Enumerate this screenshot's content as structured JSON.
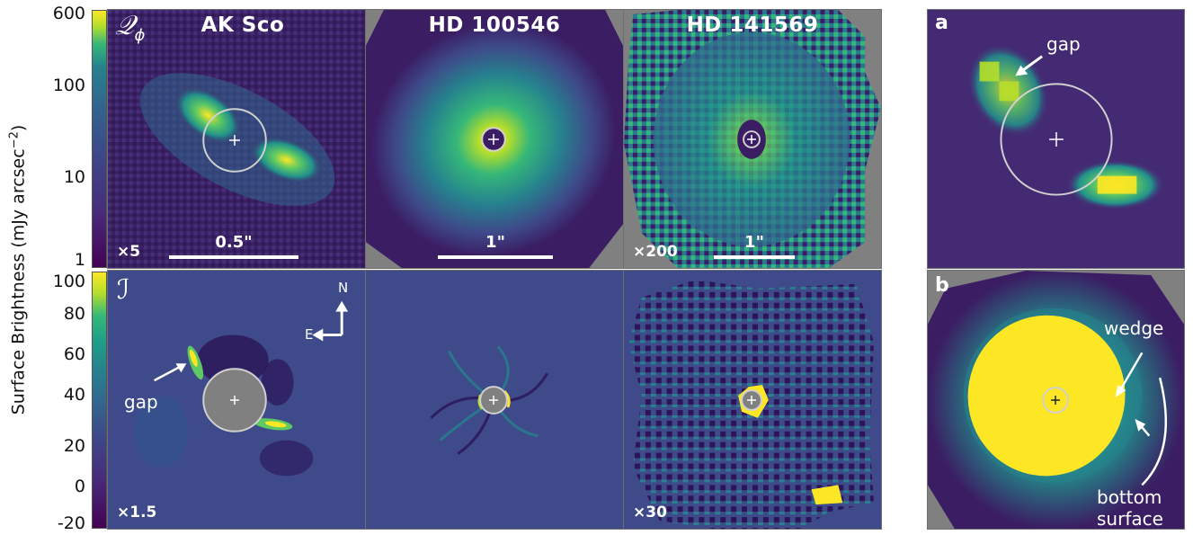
{
  "axis": {
    "ylabel": "Surface Brightness (mJy arcsec",
    "ylabel_exp": "−2",
    "ylabel_close": ")",
    "top_ticks": [
      "600",
      "100",
      "10",
      "1"
    ],
    "bottom_ticks": [
      "100",
      "80",
      "60",
      "40",
      "20",
      "0",
      "-20"
    ]
  },
  "row_labels": {
    "top": "𝒬",
    "top_sub": "ϕ",
    "bottom": "ℐ"
  },
  "columns": [
    {
      "title": "AK Sco",
      "top_mult": "×5",
      "bottom_mult": "×1.5",
      "scale": "0.5\""
    },
    {
      "title": "HD 100546",
      "top_mult": "",
      "bottom_mult": "",
      "scale": "1\""
    },
    {
      "title": "HD 141569",
      "top_mult": "×200",
      "bottom_mult": "×30",
      "scale": "1\""
    }
  ],
  "compass": {
    "north": "N",
    "east": "E"
  },
  "annotations": {
    "gap": "gap",
    "inset_a_label": "a",
    "inset_b_label": "b",
    "inset_a_gap": "gap",
    "wedge": "wedge",
    "bottom": "bottom",
    "surface": "surface"
  },
  "colors": {
    "background_dark": "#3b1d63",
    "background_mid": "#414487",
    "teal": "#22a884",
    "yellow": "#fde725",
    "mask_gray": "#808080",
    "frame": "#6f6f6f"
  },
  "colormap": "viridis",
  "top_scale": "log",
  "bottom_scale": "linear"
}
